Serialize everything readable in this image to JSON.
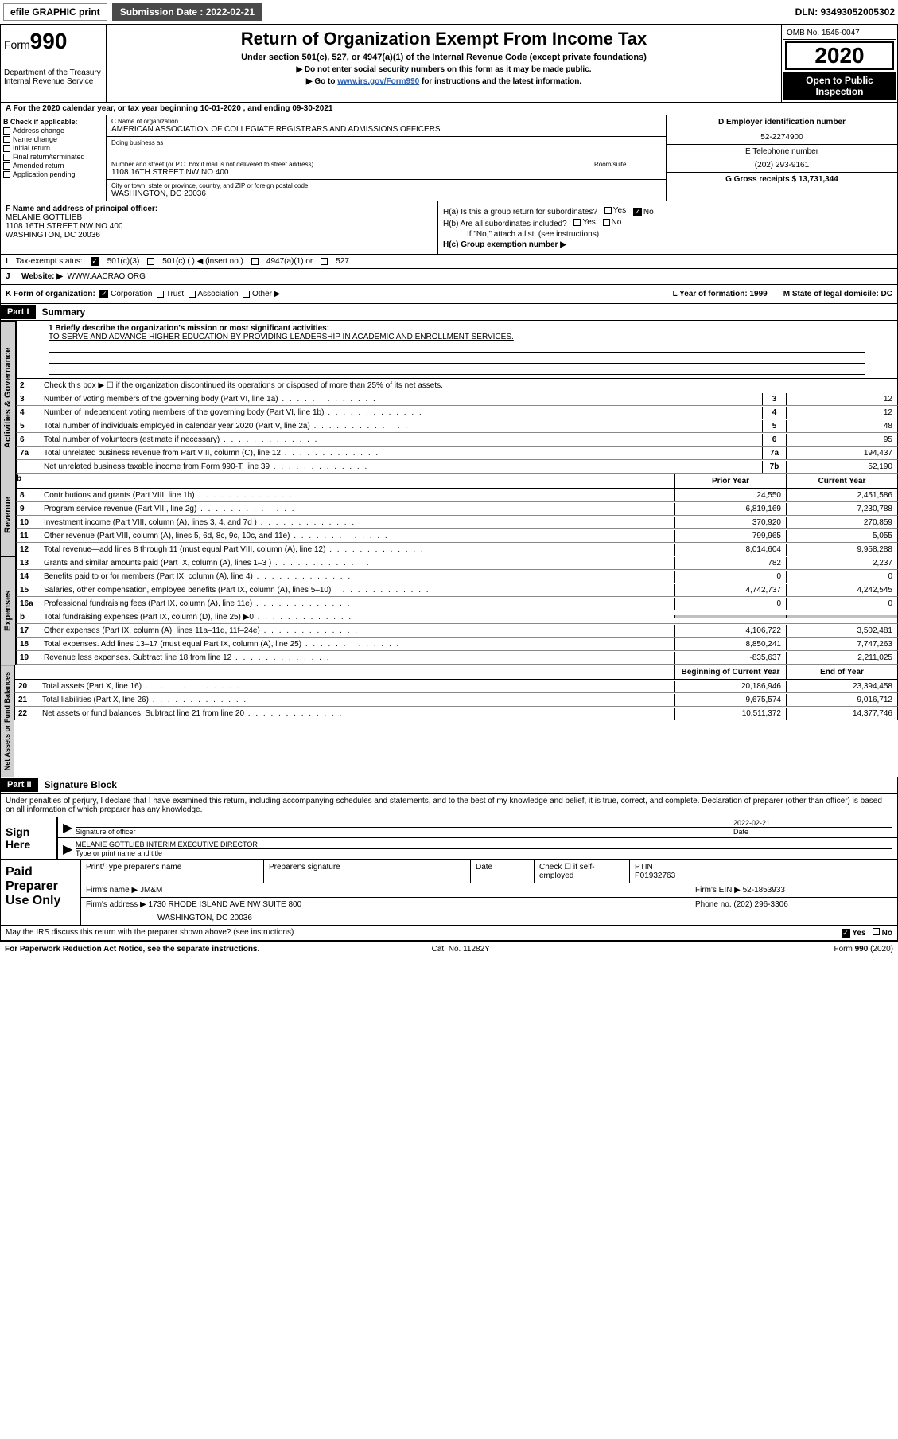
{
  "topbar": {
    "efile": "efile GRAPHIC print",
    "submission": "Submission Date : 2022-02-21",
    "dln": "DLN: 93493052005302"
  },
  "header": {
    "form_label": "Form",
    "form_num": "990",
    "dept": "Department of the Treasury Internal Revenue Service",
    "title": "Return of Organization Exempt From Income Tax",
    "sub1": "Under section 501(c), 527, or 4947(a)(1) of the Internal Revenue Code (except private foundations)",
    "sub2a": "▶ Do not enter social security numbers on this form as it may be made public.",
    "sub2b_pre": "▶ Go to ",
    "sub2b_link": "www.irs.gov/Form990",
    "sub2b_post": " for instructions and the latest information.",
    "omb": "OMB No. 1545-0047",
    "year": "2020",
    "open1": "Open to Public",
    "open2": "Inspection"
  },
  "row_a": "A For the 2020 calendar year, or tax year beginning 10-01-2020    , and ending 09-30-2021",
  "section_b": {
    "hdr": "B Check if applicable:",
    "opts": [
      "Address change",
      "Name change",
      "Initial return",
      "Final return/terminated",
      "Amended return",
      "Application pending"
    ]
  },
  "section_c": {
    "name_lbl": "C Name of organization",
    "name": "AMERICAN ASSOCIATION OF COLLEGIATE REGISTRARS AND ADMISSIONS OFFICERS",
    "dba_lbl": "Doing business as",
    "addr_lbl": "Number and street (or P.O. box if mail is not delivered to street address)",
    "room_lbl": "Room/suite",
    "addr": "1108 16TH STREET NW NO 400",
    "city_lbl": "City or town, state or province, country, and ZIP or foreign postal code",
    "city": "WASHINGTON, DC  20036"
  },
  "section_d": {
    "ein_lbl": "D Employer identification number",
    "ein": "52-2274900",
    "tel_lbl": "E Telephone number",
    "tel": "(202) 293-9161",
    "gross_lbl": "G Gross receipts $ 13,731,344"
  },
  "section_f": {
    "lbl": "F Name and address of principal officer:",
    "name": "MELANIE GOTTLIEB",
    "addr1": "1108 16TH STREET NW NO 400",
    "addr2": "WASHINGTON, DC  20036"
  },
  "section_h": {
    "ha": "H(a)  Is this a group return for subordinates?",
    "hb": "H(b)  Are all subordinates included?",
    "hb_note": "If \"No,\" attach a list. (see instructions)",
    "hc": "H(c)  Group exemption number ▶",
    "yes": "Yes",
    "no": "No"
  },
  "tax_row": {
    "lbl": "Tax-exempt status:",
    "o1": "501(c)(3)",
    "o2": "501(c) (  ) ◀ (insert no.)",
    "o3": "4947(a)(1) or",
    "o4": "527"
  },
  "row_j": {
    "lbl": "J",
    "text": "Website: ▶",
    "val": "WWW.AACRAO.ORG"
  },
  "row_k": {
    "lbl": "K Form of organization:",
    "opts": [
      "Corporation",
      "Trust",
      "Association",
      "Other ▶"
    ],
    "l_lbl": "L Year of formation: 1999",
    "m_lbl": "M State of legal domicile: DC"
  },
  "part1": {
    "hdr": "Part I",
    "title": "Summary"
  },
  "mission": {
    "l1": "1  Briefly describe the organization's mission or most significant activities:",
    "text": "TO SERVE AND ADVANCE HIGHER EDUCATION BY PROVIDING LEADERSHIP IN ACADEMIC AND ENROLLMENT SERVICES."
  },
  "gov_lines": {
    "l2": "Check this box ▶ ☐  if the organization discontinued its operations or disposed of more than 25% of its net assets.",
    "rows": [
      {
        "n": "3",
        "d": "Number of voting members of the governing body (Part VI, line 1a)",
        "c": "3",
        "v": "12"
      },
      {
        "n": "4",
        "d": "Number of independent voting members of the governing body (Part VI, line 1b)",
        "c": "4",
        "v": "12"
      },
      {
        "n": "5",
        "d": "Total number of individuals employed in calendar year 2020 (Part V, line 2a)",
        "c": "5",
        "v": "48"
      },
      {
        "n": "6",
        "d": "Total number of volunteers (estimate if necessary)",
        "c": "6",
        "v": "95"
      },
      {
        "n": "7a",
        "d": "Total unrelated business revenue from Part VIII, column (C), line 12",
        "c": "7a",
        "v": "194,437"
      },
      {
        "n": "",
        "d": "Net unrelated business taxable income from Form 990-T, line 39",
        "c": "7b",
        "v": "52,190"
      }
    ]
  },
  "cols_hdr": {
    "b": "b",
    "prior": "Prior Year",
    "curr": "Current Year"
  },
  "revenue": [
    {
      "n": "8",
      "d": "Contributions and grants (Part VIII, line 1h)",
      "p": "24,550",
      "c": "2,451,586"
    },
    {
      "n": "9",
      "d": "Program service revenue (Part VIII, line 2g)",
      "p": "6,819,169",
      "c": "7,230,788"
    },
    {
      "n": "10",
      "d": "Investment income (Part VIII, column (A), lines 3, 4, and 7d )",
      "p": "370,920",
      "c": "270,859"
    },
    {
      "n": "11",
      "d": "Other revenue (Part VIII, column (A), lines 5, 6d, 8c, 9c, 10c, and 11e)",
      "p": "799,965",
      "c": "5,055"
    },
    {
      "n": "12",
      "d": "Total revenue—add lines 8 through 11 (must equal Part VIII, column (A), line 12)",
      "p": "8,014,604",
      "c": "9,958,288"
    }
  ],
  "expenses": [
    {
      "n": "13",
      "d": "Grants and similar amounts paid (Part IX, column (A), lines 1–3 )",
      "p": "782",
      "c": "2,237"
    },
    {
      "n": "14",
      "d": "Benefits paid to or for members (Part IX, column (A), line 4)",
      "p": "0",
      "c": "0"
    },
    {
      "n": "15",
      "d": "Salaries, other compensation, employee benefits (Part IX, column (A), lines 5–10)",
      "p": "4,742,737",
      "c": "4,242,545"
    },
    {
      "n": "16a",
      "d": "Professional fundraising fees (Part IX, column (A), line 11e)",
      "p": "0",
      "c": "0"
    },
    {
      "n": "b",
      "d": "Total fundraising expenses (Part IX, column (D), line 25) ▶0",
      "p": "",
      "c": "",
      "shaded": true
    },
    {
      "n": "17",
      "d": "Other expenses (Part IX, column (A), lines 11a–11d, 11f–24e)",
      "p": "4,106,722",
      "c": "3,502,481"
    },
    {
      "n": "18",
      "d": "Total expenses. Add lines 13–17 (must equal Part IX, column (A), line 25)",
      "p": "8,850,241",
      "c": "7,747,263"
    },
    {
      "n": "19",
      "d": "Revenue less expenses. Subtract line 18 from line 12",
      "p": "-835,637",
      "c": "2,211,025"
    }
  ],
  "net_hdr": {
    "b": "Beginning of Current Year",
    "e": "End of Year"
  },
  "net": [
    {
      "n": "20",
      "d": "Total assets (Part X, line 16)",
      "p": "20,186,946",
      "c": "23,394,458"
    },
    {
      "n": "21",
      "d": "Total liabilities (Part X, line 26)",
      "p": "9,675,574",
      "c": "9,016,712"
    },
    {
      "n": "22",
      "d": "Net assets or fund balances. Subtract line 21 from line 20",
      "p": "10,511,372",
      "c": "14,377,746"
    }
  ],
  "vlabels": {
    "gov": "Activities & Governance",
    "rev": "Revenue",
    "exp": "Expenses",
    "net": "Net Assets or Fund Balances"
  },
  "part2": {
    "hdr": "Part II",
    "title": "Signature Block"
  },
  "sig": {
    "decl": "Under penalties of perjury, I declare that I have examined this return, including accompanying schedules and statements, and to the best of my knowledge and belief, it is true, correct, and complete. Declaration of preparer (other than officer) is based on all information of which preparer has any knowledge.",
    "side": "Sign Here",
    "sig_lbl": "Signature of officer",
    "date_lbl": "Date",
    "date": "2022-02-21",
    "name": "MELANIE GOTTLIEB  INTERIM EXECUTIVE DIRECTOR",
    "name_lbl": "Type or print name and title"
  },
  "paid": {
    "side": "Paid Preparer Use Only",
    "p1": "Print/Type preparer's name",
    "p2": "Preparer's signature",
    "p3": "Date",
    "p4a": "Check ☐ if self-employed",
    "p5a": "PTIN",
    "p5b": "P01932763",
    "firm_lbl": "Firm's name    ▶",
    "firm": "JM&M",
    "ein_lbl": "Firm's EIN ▶",
    "ein": "52-1853933",
    "addr_lbl": "Firm's address ▶",
    "addr1": "1730 RHODE ISLAND AVE NW SUITE 800",
    "addr2": "WASHINGTON, DC  20036",
    "phone_lbl": "Phone no.",
    "phone": "(202) 296-3306"
  },
  "discuss": {
    "q": "May the IRS discuss this return with the preparer shown above? (see instructions)",
    "yes": "Yes",
    "no": "No"
  },
  "footer": {
    "l": "For Paperwork Reduction Act Notice, see the separate instructions.",
    "m": "Cat. No. 11282Y",
    "r": "Form 990 (2020)"
  },
  "style": {
    "accent": "#2a5db0",
    "black": "#000000",
    "gray_bg": "#d0d0d0",
    "shaded": "#c0c0c0"
  }
}
